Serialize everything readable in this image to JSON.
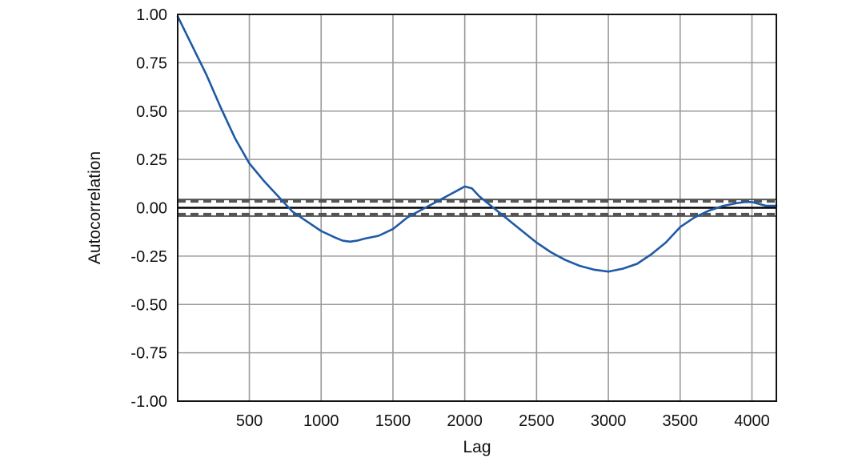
{
  "chart_data": {
    "type": "line",
    "title": "",
    "xlabel": "Lag",
    "ylabel": "Autocorrelation",
    "xlim": [
      1,
      4170
    ],
    "ylim": [
      -1.0,
      1.0
    ],
    "grid": true,
    "x_ticks": [
      500,
      1000,
      1500,
      2000,
      2500,
      3000,
      3500,
      4000
    ],
    "x_tick_labels": [
      "500",
      "1000",
      "1500",
      "2000",
      "2500",
      "3000",
      "3500",
      "4000"
    ],
    "y_ticks": [
      1.0,
      0.75,
      0.5,
      0.25,
      0.0,
      -0.25,
      -0.5,
      -0.75,
      -1.0
    ],
    "y_tick_labels": [
      "1.00",
      "0.75",
      "0.50",
      "0.25",
      "0.00",
      "-0.25",
      "-0.50",
      "-0.75",
      "-1.00"
    ],
    "zero_line": 0.0,
    "confidence_bands": {
      "lines": [
        0.043,
        0.033,
        -0.033,
        -0.043
      ],
      "style": [
        "solid",
        "dashed",
        "dashed",
        "solid"
      ],
      "color": "#555555"
    },
    "series": [
      {
        "color": "#1f5aa6",
        "x": [
          1,
          100,
          200,
          300,
          400,
          500,
          600,
          700,
          800,
          900,
          1000,
          1100,
          1150,
          1200,
          1250,
          1300,
          1400,
          1500,
          1600,
          1700,
          1800,
          1900,
          1950,
          2000,
          2050,
          2100,
          2200,
          2300,
          2400,
          2500,
          2600,
          2700,
          2800,
          2900,
          3000,
          3100,
          3200,
          3300,
          3400,
          3500,
          3600,
          3700,
          3800,
          3900,
          3950,
          4000,
          4050,
          4100,
          4170
        ],
        "y": [
          0.99,
          0.84,
          0.69,
          0.52,
          0.36,
          0.23,
          0.14,
          0.06,
          -0.02,
          -0.07,
          -0.12,
          -0.155,
          -0.17,
          -0.175,
          -0.17,
          -0.16,
          -0.145,
          -0.11,
          -0.05,
          -0.01,
          0.03,
          0.07,
          0.09,
          0.11,
          0.1,
          0.06,
          0.0,
          -0.06,
          -0.12,
          -0.18,
          -0.23,
          -0.27,
          -0.3,
          -0.32,
          -0.33,
          -0.315,
          -0.29,
          -0.24,
          -0.18,
          -0.1,
          -0.05,
          -0.015,
          0.01,
          0.025,
          0.03,
          0.03,
          0.02,
          0.01,
          0.01
        ]
      }
    ]
  }
}
